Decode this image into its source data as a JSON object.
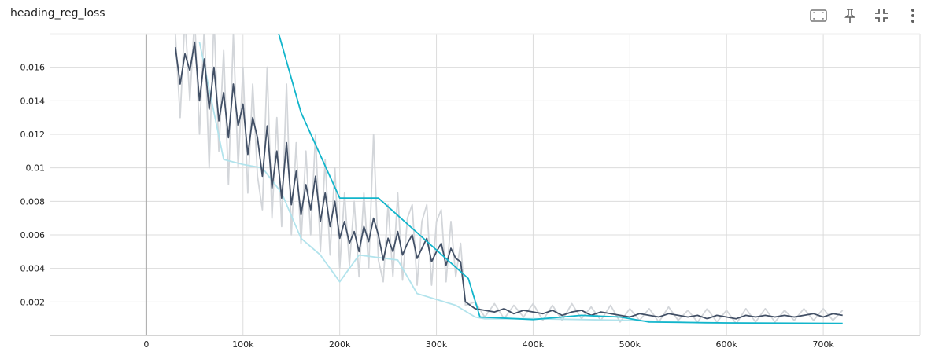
{
  "chart_data": {
    "type": "line",
    "title": "heading_reg_loss",
    "xlim": [
      -100000,
      800000
    ],
    "xticks": [
      {
        "value": 0,
        "label": "0"
      },
      {
        "value": 100000,
        "label": "100k"
      },
      {
        "value": 200000,
        "label": "200k"
      },
      {
        "value": 300000,
        "label": "300k"
      },
      {
        "value": 400000,
        "label": "400k"
      },
      {
        "value": 500000,
        "label": "500k"
      },
      {
        "value": 600000,
        "label": "600k"
      },
      {
        "value": 700000,
        "label": "700k"
      }
    ],
    "ylim": [
      0,
      0.018
    ],
    "yticks": [
      0.002,
      0.004,
      0.006,
      0.008,
      0.01,
      0.012,
      0.014,
      0.016
    ],
    "grid": true,
    "series": [
      {
        "color": "#d3d6da",
        "x": [
          30000,
          35000,
          40000,
          45000,
          50000,
          55000,
          60000,
          65000,
          70000,
          75000,
          80000,
          85000,
          90000,
          95000,
          100000,
          105000,
          110000,
          115000,
          120000,
          125000,
          130000,
          135000,
          140000,
          145000,
          150000,
          155000,
          160000,
          165000,
          170000,
          175000,
          180000,
          185000,
          190000,
          195000,
          200000,
          205000,
          210000,
          215000,
          220000,
          225000,
          230000,
          235000,
          240000,
          245000,
          250000,
          255000,
          260000,
          265000,
          270000,
          275000,
          280000,
          285000,
          290000,
          295000,
          300000,
          305000,
          310000,
          315000,
          320000,
          325000,
          330000,
          340000,
          350000,
          360000,
          370000,
          380000,
          390000,
          400000,
          410000,
          420000,
          430000,
          440000,
          450000,
          460000,
          470000,
          480000,
          490000,
          500000,
          510000,
          520000,
          530000,
          540000,
          550000,
          560000,
          570000,
          580000,
          590000,
          600000,
          610000,
          620000,
          630000,
          640000,
          650000,
          660000,
          670000,
          680000,
          690000,
          700000,
          710000,
          720000
        ],
        "values": [
          0.018,
          0.013,
          0.019,
          0.014,
          0.019,
          0.012,
          0.0185,
          0.01,
          0.019,
          0.011,
          0.017,
          0.009,
          0.018,
          0.01,
          0.016,
          0.0085,
          0.015,
          0.0095,
          0.0075,
          0.016,
          0.007,
          0.013,
          0.0065,
          0.015,
          0.006,
          0.0115,
          0.0055,
          0.011,
          0.006,
          0.012,
          0.005,
          0.0105,
          0.0048,
          0.01,
          0.004,
          0.0085,
          0.0042,
          0.008,
          0.0035,
          0.0085,
          0.004,
          0.012,
          0.0045,
          0.0032,
          0.0078,
          0.0035,
          0.0085,
          0.0033,
          0.007,
          0.0078,
          0.003,
          0.0068,
          0.0078,
          0.003,
          0.0068,
          0.0075,
          0.0032,
          0.0068,
          0.0035,
          0.0055,
          0.0018,
          0.002,
          0.0011,
          0.0019,
          0.001,
          0.0018,
          0.0011,
          0.0019,
          0.0009,
          0.0018,
          0.0009,
          0.0019,
          0.001,
          0.0017,
          0.0009,
          0.0018,
          0.0008,
          0.0016,
          0.0009,
          0.0016,
          0.0008,
          0.0017,
          0.0009,
          0.0015,
          0.0008,
          0.0016,
          0.0008,
          0.0015,
          0.0007,
          0.0016,
          0.0008,
          0.0016,
          0.0008,
          0.0015,
          0.0009,
          0.0016,
          0.0009,
          0.0016,
          0.0009,
          0.0015
        ]
      },
      {
        "color": "#b2e3ec",
        "x": [
          55000,
          80000,
          100000,
          120000,
          140000,
          160000,
          180000,
          200000,
          220000,
          260000,
          280000,
          320000,
          340000,
          350000,
          400000,
          500000,
          600000,
          720000
        ],
        "values": [
          0.0175,
          0.0105,
          0.0102,
          0.01,
          0.0085,
          0.0058,
          0.0048,
          0.0032,
          0.0048,
          0.0045,
          0.0025,
          0.0018,
          0.0011,
          0.001,
          0.001,
          0.0009,
          0.0007,
          0.0007
        ]
      },
      {
        "color": "#425066",
        "x": [
          30000,
          35000,
          40000,
          45000,
          50000,
          55000,
          60000,
          65000,
          70000,
          75000,
          80000,
          85000,
          90000,
          95000,
          100000,
          105000,
          110000,
          115000,
          120000,
          125000,
          130000,
          135000,
          140000,
          145000,
          150000,
          155000,
          160000,
          165000,
          170000,
          175000,
          180000,
          185000,
          190000,
          195000,
          200000,
          205000,
          210000,
          215000,
          220000,
          225000,
          230000,
          235000,
          240000,
          245000,
          250000,
          255000,
          260000,
          265000,
          270000,
          275000,
          280000,
          285000,
          290000,
          295000,
          300000,
          305000,
          310000,
          315000,
          320000,
          325000,
          330000,
          340000,
          350000,
          360000,
          370000,
          380000,
          390000,
          400000,
          410000,
          420000,
          430000,
          440000,
          450000,
          460000,
          470000,
          480000,
          490000,
          500000,
          510000,
          520000,
          530000,
          540000,
          550000,
          560000,
          570000,
          580000,
          590000,
          600000,
          610000,
          620000,
          630000,
          640000,
          650000,
          660000,
          670000,
          680000,
          690000,
          700000,
          710000,
          720000
        ],
        "values": [
          0.0172,
          0.015,
          0.0168,
          0.0158,
          0.0175,
          0.014,
          0.0165,
          0.0135,
          0.016,
          0.0128,
          0.0145,
          0.0118,
          0.015,
          0.0125,
          0.0138,
          0.0108,
          0.013,
          0.0118,
          0.0095,
          0.0125,
          0.0088,
          0.011,
          0.0082,
          0.0115,
          0.0078,
          0.0098,
          0.0072,
          0.009,
          0.0075,
          0.0095,
          0.0068,
          0.0085,
          0.0065,
          0.008,
          0.0058,
          0.0068,
          0.0055,
          0.0062,
          0.005,
          0.0065,
          0.0056,
          0.007,
          0.006,
          0.0045,
          0.0058,
          0.005,
          0.0062,
          0.0048,
          0.0055,
          0.006,
          0.0046,
          0.0052,
          0.0058,
          0.0044,
          0.005,
          0.0055,
          0.0042,
          0.0052,
          0.0046,
          0.0044,
          0.002,
          0.0016,
          0.0015,
          0.0014,
          0.0016,
          0.0013,
          0.0015,
          0.0014,
          0.0013,
          0.0015,
          0.0012,
          0.0014,
          0.0015,
          0.0012,
          0.0014,
          0.0013,
          0.0012,
          0.0011,
          0.0013,
          0.0012,
          0.0011,
          0.0013,
          0.0012,
          0.0011,
          0.0012,
          0.001,
          0.0012,
          0.0011,
          0.001,
          0.0012,
          0.0011,
          0.0012,
          0.0011,
          0.0012,
          0.0011,
          0.0012,
          0.0013,
          0.0011,
          0.0013,
          0.0012
        ]
      },
      {
        "color": "#12b5cb",
        "x": [
          137000,
          160000,
          200000,
          240000,
          333000,
          345000,
          400000,
          450000,
          490000,
          520000,
          600000,
          720000
        ],
        "values": [
          0.018,
          0.0133,
          0.0082,
          0.0082,
          0.0034,
          0.0011,
          0.00095,
          0.0012,
          0.0011,
          0.0008,
          0.00075,
          0.00072
        ]
      }
    ]
  }
}
